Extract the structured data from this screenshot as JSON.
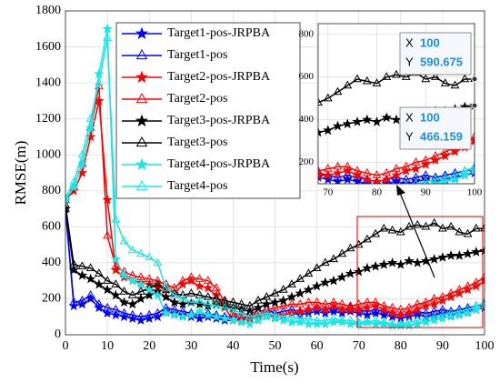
{
  "chart_data": {
    "type": "line",
    "xlabel": "Time(s)",
    "ylabel": "RMSE(m)",
    "xlim": [
      0,
      100
    ],
    "xticks": [
      0,
      10,
      20,
      30,
      40,
      50,
      60,
      70,
      80,
      90,
      100
    ],
    "ylim": [
      0,
      1800
    ],
    "yticks": [
      0,
      200,
      400,
      600,
      800,
      1000,
      1200,
      1400,
      1600,
      1800
    ],
    "grid": true,
    "legend": "upper left",
    "x": [
      0,
      2,
      4,
      6,
      8,
      10,
      12,
      14,
      16,
      18,
      20,
      22,
      24,
      26,
      28,
      30,
      32,
      34,
      36,
      38,
      40,
      42,
      44,
      46,
      48,
      50,
      52,
      54,
      56,
      58,
      60,
      62,
      64,
      66,
      68,
      70,
      72,
      74,
      76,
      78,
      80,
      82,
      84,
      86,
      88,
      90,
      92,
      94,
      96,
      98,
      100
    ],
    "series": [
      {
        "name": "Target1-pos-JRPBA",
        "color": "#0000ff",
        "marker": "star",
        "values": [
          700,
          160,
          170,
          200,
          150,
          120,
          110,
          100,
          90,
          80,
          90,
          100,
          130,
          120,
          110,
          100,
          90,
          100,
          90,
          80,
          80,
          90,
          100,
          110,
          120,
          100,
          110,
          120,
          110,
          120,
          130,
          120,
          130,
          120,
          130,
          120,
          110,
          120,
          110,
          100,
          90,
          100,
          110,
          100,
          110,
          120,
          110,
          120,
          130,
          140,
          150
        ]
      },
      {
        "name": "Target1-pos",
        "color": "#0000ff",
        "marker": "triangle",
        "values": [
          700,
          180,
          190,
          220,
          170,
          150,
          140,
          120,
          110,
          100,
          110,
          120,
          150,
          140,
          130,
          120,
          110,
          120,
          110,
          100,
          100,
          110,
          120,
          130,
          140,
          120,
          130,
          140,
          130,
          140,
          150,
          140,
          150,
          140,
          150,
          140,
          130,
          140,
          130,
          120,
          110,
          120,
          130,
          120,
          130,
          140,
          130,
          140,
          150,
          160,
          170
        ]
      },
      {
        "name": "Target2-pos-JRPBA",
        "color": "#ff0000",
        "marker": "star",
        "values": [
          750,
          800,
          900,
          1100,
          1300,
          750,
          360,
          320,
          300,
          290,
          280,
          270,
          250,
          230,
          280,
          300,
          270,
          260,
          220,
          150,
          80,
          80,
          90,
          100,
          110,
          100,
          110,
          120,
          130,
          140,
          150,
          140,
          160,
          140,
          140,
          140,
          150,
          160,
          140,
          120,
          110,
          120,
          140,
          160,
          170,
          190,
          210,
          230,
          250,
          270,
          300
        ]
      },
      {
        "name": "Target2-pos",
        "color": "#ff0000",
        "marker": "triangle",
        "values": [
          750,
          820,
          950,
          1150,
          1380,
          550,
          380,
          350,
          330,
          320,
          310,
          300,
          280,
          260,
          300,
          320,
          310,
          300,
          260,
          180,
          120,
          110,
          120,
          130,
          140,
          150,
          160,
          170,
          170,
          180,
          180,
          170,
          180,
          170,
          160,
          170,
          180,
          180,
          160,
          150,
          140,
          150,
          170,
          180,
          200,
          210,
          230,
          250,
          270,
          290,
          320
        ]
      },
      {
        "name": "Target3-pos-JRPBA",
        "color": "#000000",
        "marker": "star",
        "values": [
          700,
          360,
          330,
          310,
          280,
          250,
          220,
          180,
          170,
          200,
          220,
          240,
          210,
          180,
          170,
          180,
          170,
          160,
          170,
          160,
          150,
          140,
          130,
          150,
          170,
          180,
          190,
          210,
          230,
          250,
          270,
          290,
          300,
          320,
          340,
          350,
          370,
          380,
          390,
          400,
          390,
          410,
          400,
          410,
          420,
          430,
          440,
          440,
          450,
          460,
          466.159
        ]
      },
      {
        "name": "Target3-pos",
        "color": "#000000",
        "marker": "triangle",
        "values": [
          720,
          390,
          380,
          370,
          340,
          300,
          280,
          240,
          220,
          240,
          260,
          280,
          250,
          230,
          220,
          230,
          220,
          210,
          200,
          190,
          180,
          170,
          160,
          190,
          210,
          230,
          250,
          280,
          310,
          340,
          370,
          400,
          420,
          450,
          480,
          500,
          530,
          560,
          590,
          580,
          570,
          600,
          610,
          600,
          620,
          590,
          600,
          570,
          560,
          590,
          590.675
        ]
      },
      {
        "name": "Target4-pos-JRPBA",
        "color": "#19e6e6",
        "marker": "star",
        "values": [
          750,
          820,
          950,
          1150,
          1450,
          1700,
          420,
          330,
          300,
          280,
          250,
          220,
          120,
          110,
          100,
          110,
          130,
          110,
          100,
          90,
          80,
          70,
          60,
          80,
          100,
          90,
          80,
          70,
          70,
          60,
          60,
          60,
          70,
          70,
          60,
          60,
          70,
          60,
          60,
          50,
          50,
          50,
          60,
          70,
          80,
          90,
          100,
          110,
          120,
          140,
          160
        ]
      },
      {
        "name": "Target4-pos",
        "color": "#19e6e6",
        "marker": "triangle",
        "values": [
          760,
          850,
          1000,
          1200,
          1400,
          1650,
          640,
          520,
          470,
          450,
          430,
          400,
          260,
          220,
          200,
          180,
          190,
          170,
          160,
          150,
          140,
          120,
          100,
          110,
          120,
          110,
          100,
          100,
          90,
          90,
          80,
          80,
          90,
          80,
          80,
          70,
          70,
          80,
          70,
          60,
          60,
          70,
          80,
          90,
          100,
          110,
          120,
          130,
          140,
          160,
          180
        ]
      }
    ],
    "inset": {
      "xlim": [
        68,
        100
      ],
      "xticks": [
        70,
        80,
        90,
        100
      ],
      "ylim": [
        100,
        850
      ],
      "yticks": [
        200,
        400,
        600,
        800
      ]
    },
    "datatips": [
      {
        "x_label": "X",
        "x": 100,
        "y_label": "Y",
        "y": 590.675
      },
      {
        "x_label": "X",
        "x": 100,
        "y_label": "Y",
        "y": 466.159
      }
    ]
  }
}
